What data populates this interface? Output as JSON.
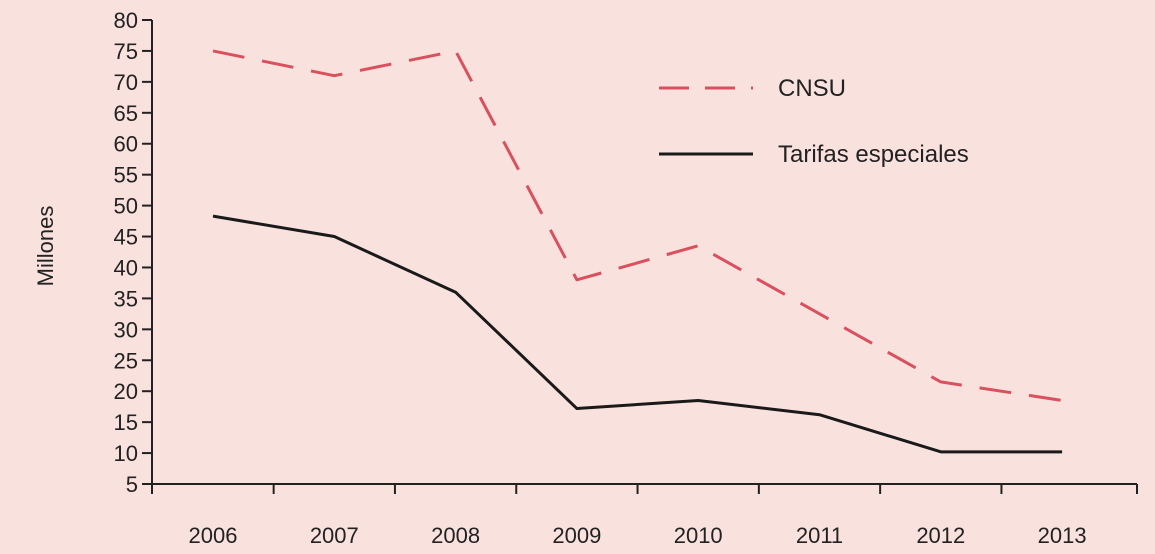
{
  "chart_data": {
    "type": "line",
    "title": "",
    "xlabel": "",
    "ylabel": "Millones",
    "categories": [
      "2006",
      "2007",
      "2008",
      "2009",
      "2010",
      "2011",
      "2012",
      "2013"
    ],
    "ylim": [
      5,
      80
    ],
    "yticks": [
      5,
      10,
      15,
      20,
      25,
      30,
      35,
      40,
      45,
      50,
      55,
      60,
      65,
      70,
      75,
      80
    ],
    "grid": false,
    "legend_position": "top-right",
    "series": [
      {
        "name": "CNSU",
        "style": "dashed",
        "color": "#d9505e",
        "values": [
          75,
          71,
          75,
          38,
          43.5,
          32.5,
          21.5,
          18.5
        ]
      },
      {
        "name": "Tarifas especiales",
        "style": "solid",
        "color": "#1a1a1a",
        "values": [
          48.3,
          45,
          36,
          17.2,
          18.5,
          16.2,
          10.2,
          10.2
        ]
      }
    ]
  }
}
